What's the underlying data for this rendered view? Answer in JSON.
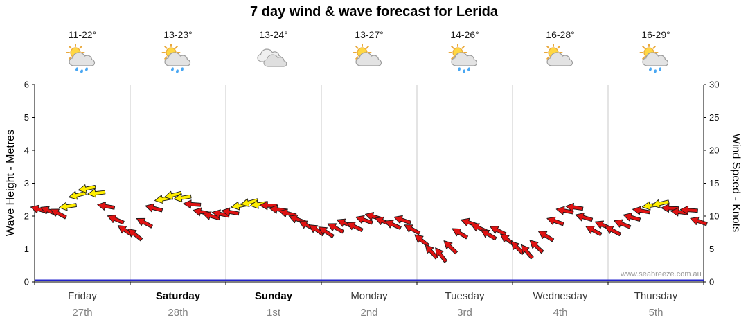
{
  "title": "7 day wind & wave forecast for Lerida",
  "watermark": "www.seabreeze.com.au",
  "days": [
    {
      "name": "Friday",
      "date": "27th",
      "temp": "11-22°",
      "icon": "sun-cloud-rain",
      "emphasis": false
    },
    {
      "name": "Saturday",
      "date": "28th",
      "temp": "13-23°",
      "icon": "sun-cloud-rain",
      "emphasis": true
    },
    {
      "name": "Sunday",
      "date": "1st",
      "temp": "13-24°",
      "icon": "cloudy",
      "emphasis": true
    },
    {
      "name": "Monday",
      "date": "2nd",
      "temp": "13-27°",
      "icon": "sun-cloud",
      "emphasis": false
    },
    {
      "name": "Tuesday",
      "date": "3rd",
      "temp": "14-26°",
      "icon": "sun-cloud-rain",
      "emphasis": false
    },
    {
      "name": "Wednesday",
      "date": "4th",
      "temp": "16-28°",
      "icon": "sun-cloud",
      "emphasis": false
    },
    {
      "name": "Thursday",
      "date": "5th",
      "temp": "16-29°",
      "icon": "sun-cloud-rain",
      "emphasis": false
    }
  ],
  "axes": {
    "left": {
      "label": "Wave Height - Metres",
      "ticks": [
        0,
        1,
        2,
        3,
        4,
        5,
        6
      ],
      "max": 6
    },
    "right": {
      "label": "Wind Speed - Knots",
      "ticks": [
        0,
        5,
        10,
        15,
        20,
        25,
        30
      ],
      "max": 30
    }
  },
  "colors": {
    "arrow_red": "#e01212",
    "arrow_yellow": "#ffee00",
    "arrow_outline": "#1a1a1a",
    "wave_line": "#2323cc",
    "grid": "#c9c9c9",
    "axis": "#000000"
  },
  "chart_data": {
    "type": "scatter",
    "title": "7 day wind & wave forecast for Lerida",
    "x_unit": "days (0 = start Friday, 7 = end Thursday)",
    "ylim_left_metres": [
      0,
      6
    ],
    "ylim_right_knots": [
      0,
      30
    ],
    "grid": "vertical lines at day boundaries",
    "wave_height_m": {
      "style": "flat_line",
      "value": 0.05
    },
    "wind_points": {
      "x": [
        0.05,
        0.15,
        0.25,
        0.35,
        0.45,
        0.55,
        0.65,
        0.75,
        0.85,
        0.95,
        1.05,
        1.15,
        1.25,
        1.35,
        1.45,
        1.55,
        1.65,
        1.75,
        1.85,
        1.95,
        2.05,
        2.15,
        2.25,
        2.35,
        2.45,
        2.55,
        2.65,
        2.75,
        2.85,
        2.95,
        3.05,
        3.15,
        3.25,
        3.35,
        3.45,
        3.55,
        3.65,
        3.75,
        3.85,
        3.95,
        4.05,
        4.15,
        4.25,
        4.35,
        4.45,
        4.55,
        4.65,
        4.75,
        4.85,
        4.95,
        5.05,
        5.15,
        5.25,
        5.35,
        5.45,
        5.55,
        5.65,
        5.75,
        5.85,
        5.95,
        6.05,
        6.15,
        6.25,
        6.35,
        6.45,
        6.55,
        6.65,
        6.75,
        6.85,
        6.95
      ],
      "knots": [
        11,
        10.8,
        10.4,
        11.5,
        13.2,
        14.2,
        13.5,
        11.5,
        9.5,
        7.8,
        7.2,
        9,
        11.2,
        12.6,
        13.2,
        12.8,
        11.8,
        10.6,
        10,
        10.3,
        10.6,
        11.6,
        12.1,
        11.8,
        11.6,
        11,
        10.4,
        9.5,
        8.6,
        7.9,
        7.6,
        8.2,
        8.9,
        8.4,
        9.4,
        9.9,
        9.2,
        8.7,
        9.4,
        8,
        6.3,
        4.6,
        4.1,
        5.3,
        7.4,
        9,
        8.2,
        7.2,
        7.8,
        6.4,
        5.2,
        4.6,
        5.4,
        7,
        9.2,
        10.8,
        11.3,
        9.8,
        7.8,
        8.6,
        7.8,
        8.8,
        9.8,
        10.8,
        11.6,
        11.9,
        11.2,
        10.6,
        10.9,
        9.2
      ],
      "color": [
        "r",
        "r",
        "r",
        "y",
        "y",
        "y",
        "y",
        "r",
        "r",
        "r",
        "r",
        "r",
        "r",
        "y",
        "y",
        "y",
        "r",
        "r",
        "r",
        "r",
        "r",
        "y",
        "y",
        "y",
        "r",
        "r",
        "r",
        "r",
        "r",
        "r",
        "r",
        "r",
        "r",
        "r",
        "r",
        "r",
        "r",
        "r",
        "r",
        "r",
        "r",
        "r",
        "r",
        "r",
        "r",
        "r",
        "r",
        "r",
        "r",
        "r",
        "r",
        "r",
        "r",
        "r",
        "r",
        "r",
        "r",
        "r",
        "r",
        "r",
        "r",
        "r",
        "r",
        "r",
        "y",
        "y",
        "r",
        "r",
        "r",
        "r"
      ],
      "rot": [
        196,
        203,
        208,
        172,
        166,
        169,
        174,
        190,
        203,
        214,
        218,
        208,
        195,
        170,
        166,
        171,
        184,
        192,
        196,
        192,
        190,
        170,
        166,
        171,
        182,
        188,
        195,
        201,
        208,
        214,
        213,
        208,
        203,
        206,
        199,
        196,
        201,
        204,
        199,
        209,
        219,
        229,
        233,
        224,
        211,
        199,
        205,
        211,
        207,
        217,
        225,
        230,
        223,
        212,
        199,
        191,
        188,
        197,
        208,
        203,
        208,
        202,
        196,
        190,
        171,
        167,
        182,
        187,
        184,
        199
      ]
    }
  }
}
